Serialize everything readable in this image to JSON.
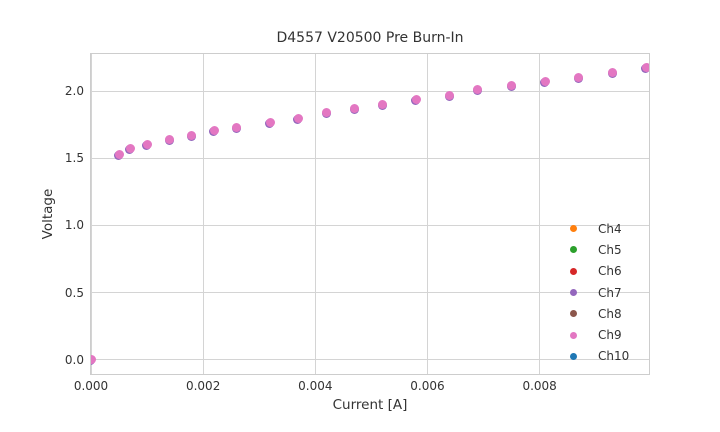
{
  "chart_data": {
    "type": "scatter",
    "title": "D4557 V20500 Pre Burn-In",
    "xlabel": "Current [A]",
    "ylabel": "Voltage",
    "xlim": [
      0,
      0.00995
    ],
    "ylim": [
      -0.107,
      2.278
    ],
    "xticks": [
      0,
      0.002,
      0.004,
      0.006,
      0.008
    ],
    "xtick_labels": [
      "0.000",
      "0.002",
      "0.004",
      "0.006",
      "0.008"
    ],
    "yticks": [
      0,
      0.5,
      1.0,
      1.5,
      2.0
    ],
    "ytick_labels": [
      "0.0",
      "0.5",
      "1.0",
      "1.5",
      "2.0"
    ],
    "grid": true,
    "legend_position": "lower-right",
    "series": [
      {
        "name": "Ch4",
        "color": "#ff7f0e"
      },
      {
        "name": "Ch5",
        "color": "#2ca02c"
      },
      {
        "name": "Ch6",
        "color": "#d62728"
      },
      {
        "name": "Ch7",
        "color": "#9467bd"
      },
      {
        "name": "Ch8",
        "color": "#8c564b"
      },
      {
        "name": "Ch9",
        "color": "#e377c2"
      },
      {
        "name": "Ch10",
        "color": "#1f77b4"
      }
    ],
    "points_shared_across_series": true,
    "top_series_color": "#e377c2",
    "fringe_color": "#9467bd",
    "points": [
      [
        0.0,
        0.0
      ],
      [
        0.0005,
        1.53
      ],
      [
        0.0007,
        1.57
      ],
      [
        0.001,
        1.6
      ],
      [
        0.0014,
        1.64
      ],
      [
        0.0018,
        1.67
      ],
      [
        0.0022,
        1.71
      ],
      [
        0.0026,
        1.73
      ],
      [
        0.0032,
        1.77
      ],
      [
        0.0037,
        1.8
      ],
      [
        0.0042,
        1.84
      ],
      [
        0.0047,
        1.87
      ],
      [
        0.0052,
        1.9
      ],
      [
        0.0058,
        1.94
      ],
      [
        0.0064,
        1.97
      ],
      [
        0.0069,
        2.01
      ],
      [
        0.0075,
        2.04
      ],
      [
        0.0081,
        2.07
      ],
      [
        0.0087,
        2.1
      ],
      [
        0.0093,
        2.14
      ],
      [
        0.0099,
        2.18
      ]
    ]
  }
}
